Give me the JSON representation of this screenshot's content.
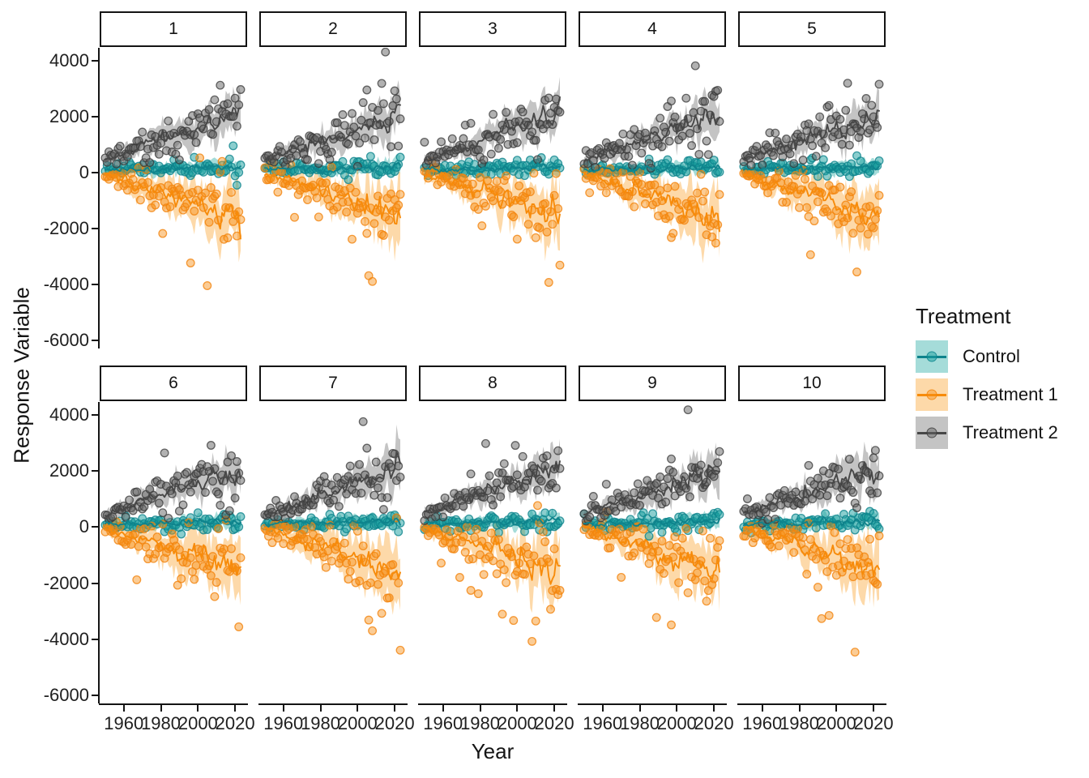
{
  "figure": {
    "x_axis_title": "Year",
    "y_axis_title": "Response Variable"
  },
  "legend": {
    "title": "Treatment",
    "items": [
      {
        "label": "Control"
      },
      {
        "label": "Treatment 1"
      },
      {
        "label": "Treatment 2"
      }
    ]
  },
  "chart_data": {
    "type": "scatter",
    "description": "Faceted plot (facet_wrap over 10 groups, 5 cols x 2 rows): yearly scatter points with jagged mean line and ribbon band per treatment group.",
    "facets": [
      "1",
      "2",
      "3",
      "4",
      "5",
      "6",
      "7",
      "8",
      "9",
      "10"
    ],
    "xlabel": "Year",
    "ylabel": "Response Variable",
    "x": {
      "data_range": [
        1950,
        2023
      ],
      "domain": [
        1947,
        2026.5
      ],
      "ticks": [
        1960,
        1980,
        2000,
        2020
      ]
    },
    "y": {
      "domain": [
        -6280,
        4450
      ],
      "ticks": [
        4000,
        2000,
        0,
        -2000,
        -4000,
        -6000
      ]
    },
    "grid": "none",
    "legend_position": "right",
    "series": [
      {
        "name": "Control",
        "line_color": "#0E838C",
        "ribbon_color": "rgba(56,178,170,0.45)",
        "point_fill": "rgba(24,158,158,0.5)",
        "point_stroke": "rgba(13,131,140,0.8)",
        "mean_start": 100,
        "mean_end": 200,
        "line_sd": [
          45,
          70
        ],
        "ribbon_half": [
          130,
          260
        ],
        "point_sd": [
          110,
          170
        ],
        "outlier_prob": 0.004,
        "outlier_dir": 0
      },
      {
        "name": "Treatment 1",
        "line_color": "#F78B0A",
        "ribbon_color": "rgba(250,160,40,0.4)",
        "point_fill": "rgba(247,141,20,0.45)",
        "point_stroke": "rgba(243,131,12,0.8)",
        "mean_start": -40,
        "mean_end": -1600,
        "line_sd": [
          60,
          280
        ],
        "ribbon_half": [
          170,
          1150
        ],
        "point_sd": [
          140,
          780
        ],
        "outlier_prob": 0.035,
        "outlier_dir": -1
      },
      {
        "name": "Treatment 2",
        "line_color": "#474747",
        "ribbon_color": "rgba(125,125,125,0.45)",
        "point_fill": "rgba(100,100,100,0.5)",
        "point_stroke": "rgba(55,55,55,0.75)",
        "mean_start": 450,
        "mean_end": 2100,
        "line_sd": [
          55,
          230
        ],
        "ribbon_half": [
          180,
          760
        ],
        "point_sd": [
          150,
          620
        ],
        "outlier_prob": 0.012,
        "outlier_dir": 1
      }
    ]
  }
}
